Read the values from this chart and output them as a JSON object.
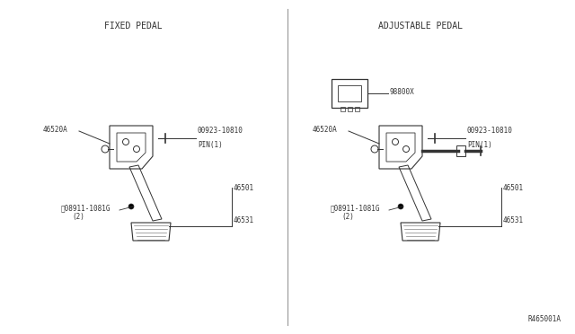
{
  "background_color": "#ffffff",
  "left_label": "FIXED PEDAL",
  "right_label": "ADJUSTABLE PEDAL",
  "ref_code": "R465001A",
  "line_color": "#333333",
  "text_color": "#333333",
  "font_size": 6.5
}
